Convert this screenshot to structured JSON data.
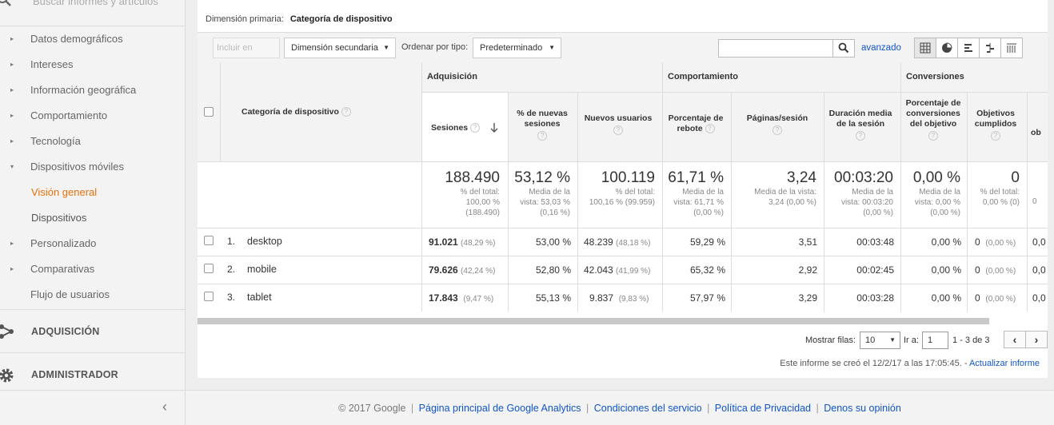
{
  "sidebar": {
    "search_placeholder": "Buscar informes y artículos",
    "items": [
      {
        "label": "Datos demográficos",
        "arrow": "▸"
      },
      {
        "label": "Intereses",
        "arrow": "▸"
      },
      {
        "label": "Información geográfica",
        "arrow": "▸"
      },
      {
        "label": "Comportamiento",
        "arrow": "▸"
      },
      {
        "label": "Tecnología",
        "arrow": "▸"
      },
      {
        "label": "Dispositivos móviles",
        "arrow": "▾"
      },
      {
        "label": "Visión general"
      },
      {
        "label": "Dispositivos"
      },
      {
        "label": "Personalizado",
        "arrow": "▸"
      },
      {
        "label": "Comparativas",
        "arrow": "▸"
      },
      {
        "label": "Flujo de usuarios"
      }
    ],
    "sections": [
      {
        "label": "ADQUISICIÓN",
        "icon": "acquisition-icon"
      },
      {
        "label": "ADMINISTRADOR",
        "icon": "gear-icon"
      }
    ],
    "collapse": "‹"
  },
  "dimension": {
    "label": "Dimensión primaria:",
    "value": "Categoría de dispositivo"
  },
  "toolbar": {
    "include_chart": "Incluir en gráfico",
    "secondary_dimension": "Dimensión secundaria",
    "sort_label": "Ordenar por tipo:",
    "sort_value": "Predeterminado",
    "advanced": "avanzado",
    "view_icons": [
      "table-view-icon",
      "pie-view-icon",
      "performance-view-icon",
      "comparison-view-icon",
      "pivot-view-icon"
    ]
  },
  "table": {
    "groups": {
      "acquisition": "Adquisición",
      "behavior": "Comportamiento",
      "conversions": "Conversiones"
    },
    "dimension_header": "Categoría de dispositivo",
    "columns": {
      "sessions": "Sesiones",
      "new_sessions_pct": "% de nuevas sesiones",
      "new_users": "Nuevos usuarios",
      "bounce_rate": "Porcentaje de rebote",
      "pages_session": "Páginas/sesión",
      "avg_duration": "Duración media de la sesión",
      "goal_conv_rate": "Porcentaje de conversiones del objetivo",
      "goal_completions": "Objetivos cumplidos",
      "goal_value_partial": "ob"
    },
    "totals": {
      "sessions": {
        "value": "188.490",
        "l1": "% del total:",
        "l2": "100,00 %",
        "l3": "(188.490)"
      },
      "new_sessions_pct": {
        "value": "53,12 %",
        "l1": "Media de la",
        "l2": "vista: 53,03 %",
        "l3": "(0,16 %)"
      },
      "new_users": {
        "value": "100.119",
        "l1": "% del total:",
        "l2": "100,16 % (99.959)"
      },
      "bounce_rate": {
        "value": "61,71 %",
        "l1": "Media de la",
        "l2": "vista: 61,71 %",
        "l3": "(0,00 %)"
      },
      "pages_session": {
        "value": "3,24",
        "l1": "Media de la vista:",
        "l2": "3,24 (0,00 %)"
      },
      "avg_duration": {
        "value": "00:03:20",
        "l1": "Media de la",
        "l2": "vista: 00:03:20",
        "l3": "(0,00 %)"
      },
      "goal_conv_rate": {
        "value": "0,00 %",
        "l1": "Media de la",
        "l2": "vista: 0,00 %",
        "l3": "(0,00 %)"
      },
      "goal_completions": {
        "value": "0",
        "l1": "% del total:",
        "l2": "0,00 % (0)"
      },
      "partial": "0"
    },
    "rows": [
      {
        "idx": "1.",
        "name": "desktop",
        "sessions": "91.021",
        "sessions_pct": "(48,29 %)",
        "new_sessions_pct": "53,00 %",
        "new_users": "48.239",
        "new_users_pct": "(48,18 %)",
        "bounce_rate": "59,29 %",
        "pages_session": "3,51",
        "avg_duration": "00:03:48",
        "goal_conv_rate": "0,00 %",
        "goal_completions": "0",
        "goal_completions_pct": "(0,00 %)",
        "partial": "0,0"
      },
      {
        "idx": "2.",
        "name": "mobile",
        "sessions": "79.626",
        "sessions_pct": "(42,24 %)",
        "new_sessions_pct": "52,80 %",
        "new_users": "42.043",
        "new_users_pct": "(41,99 %)",
        "bounce_rate": "65,32 %",
        "pages_session": "2,92",
        "avg_duration": "00:02:45",
        "goal_conv_rate": "0,00 %",
        "goal_completions": "0",
        "goal_completions_pct": "(0,00 %)",
        "partial": "0,0"
      },
      {
        "idx": "3.",
        "name": "tablet",
        "sessions": "17.843",
        "sessions_pct": "(9,47 %)",
        "new_sessions_pct": "55,13 %",
        "new_users": "9.837",
        "new_users_pct": "(9,83 %)",
        "bounce_rate": "57,97 %",
        "pages_session": "3,29",
        "avg_duration": "00:03:28",
        "goal_conv_rate": "0,00 %",
        "goal_completions": "0",
        "goal_completions_pct": "(0,00 %)",
        "partial": "0,0"
      }
    ]
  },
  "pager": {
    "show_rows_label": "Mostrar filas:",
    "show_rows_value": "10",
    "goto_label": "Ir a:",
    "goto_value": "1",
    "range": "1 - 3 de 3",
    "prev": "‹",
    "next": "›"
  },
  "report_note": {
    "text": "Este informe se creó el 12/2/17 a las 17:05:45. -",
    "link": "Actualizar informe"
  },
  "footer": {
    "copyright": "© 2017 Google",
    "links": [
      "Página principal de Google Analytics",
      "Condiciones del servicio",
      "Política de Privacidad",
      "Denos su opinión"
    ],
    "separator": "|"
  },
  "colors": {
    "active": "#e8710a",
    "link": "#1155cc"
  }
}
